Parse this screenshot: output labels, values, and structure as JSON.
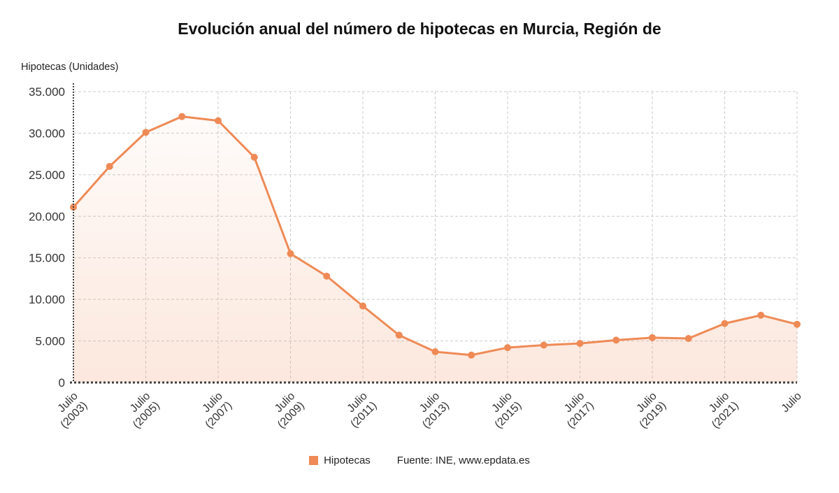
{
  "title": "Evolución anual del número de hipotecas en Murcia, Región de",
  "ylabel": "Hipotecas (Unidades)",
  "legend": {
    "series_label": "Hipotecas",
    "source_label": "Fuente: INE, www.epdata.es"
  },
  "colors": {
    "line": "#ef8a56",
    "area_top": "rgba(239,138,86,0.03)",
    "area_bottom": "rgba(239,138,86,0.20)",
    "grid": "#cccccc",
    "axis": "#3f3f3f",
    "text": "#333333"
  },
  "chart_data": {
    "type": "line",
    "title": "Evolución anual del número de hipotecas en Murcia, Región de",
    "ylabel": "Hipotecas (Unidades)",
    "series_name": "Hipotecas",
    "source": "Fuente: INE, www.epdata.es",
    "categories": [
      "Julio (2003)",
      "Julio (2004)",
      "Julio (2005)",
      "Julio (2006)",
      "Julio (2007)",
      "Julio (2008)",
      "Julio (2009)",
      "Julio (2010)",
      "Julio (2011)",
      "Julio (2012)",
      "Julio (2013)",
      "Julio (2014)",
      "Julio (2015)",
      "Julio (2016)",
      "Julio (2017)",
      "Julio (2018)",
      "Julio (2019)",
      "Julio (2020)",
      "Julio (2021)",
      "Julio (2022)",
      "Julio (2023)"
    ],
    "values": [
      21100,
      26000,
      30100,
      32000,
      31500,
      27100,
      15500,
      12800,
      9200,
      5700,
      3700,
      3300,
      4200,
      4500,
      4700,
      5100,
      5400,
      5300,
      7100,
      8100,
      7000
    ],
    "ylim": [
      0,
      35000
    ],
    "grid": true,
    "legend_position": "bottom",
    "yticks": [
      {
        "value": 0,
        "label": "0"
      },
      {
        "value": 5000,
        "label": "5.000"
      },
      {
        "value": 10000,
        "label": "10.000"
      },
      {
        "value": 15000,
        "label": "15.000"
      },
      {
        "value": 20000,
        "label": "20.000"
      },
      {
        "value": 25000,
        "label": "25.000"
      },
      {
        "value": 30000,
        "label": "30.000"
      },
      {
        "value": 35000,
        "label": "35.000"
      }
    ],
    "xticks": [
      {
        "index": 0,
        "lines": [
          "Julio",
          "(2003)"
        ]
      },
      {
        "index": 2,
        "lines": [
          "Julio",
          "(2005)"
        ]
      },
      {
        "index": 4,
        "lines": [
          "Julio",
          "(2007)"
        ]
      },
      {
        "index": 6,
        "lines": [
          "Julio",
          "(2009)"
        ]
      },
      {
        "index": 8,
        "lines": [
          "Julio",
          "(2011)"
        ]
      },
      {
        "index": 10,
        "lines": [
          "Julio",
          "(2013)"
        ]
      },
      {
        "index": 12,
        "lines": [
          "Julio",
          "(2015)"
        ]
      },
      {
        "index": 14,
        "lines": [
          "Julio",
          "(2017)"
        ]
      },
      {
        "index": 16,
        "lines": [
          "Julio",
          "(2019)"
        ]
      },
      {
        "index": 18,
        "lines": [
          "Julio",
          "(2021)"
        ]
      },
      {
        "index": 20,
        "lines": [
          "Julio"
        ]
      }
    ]
  }
}
